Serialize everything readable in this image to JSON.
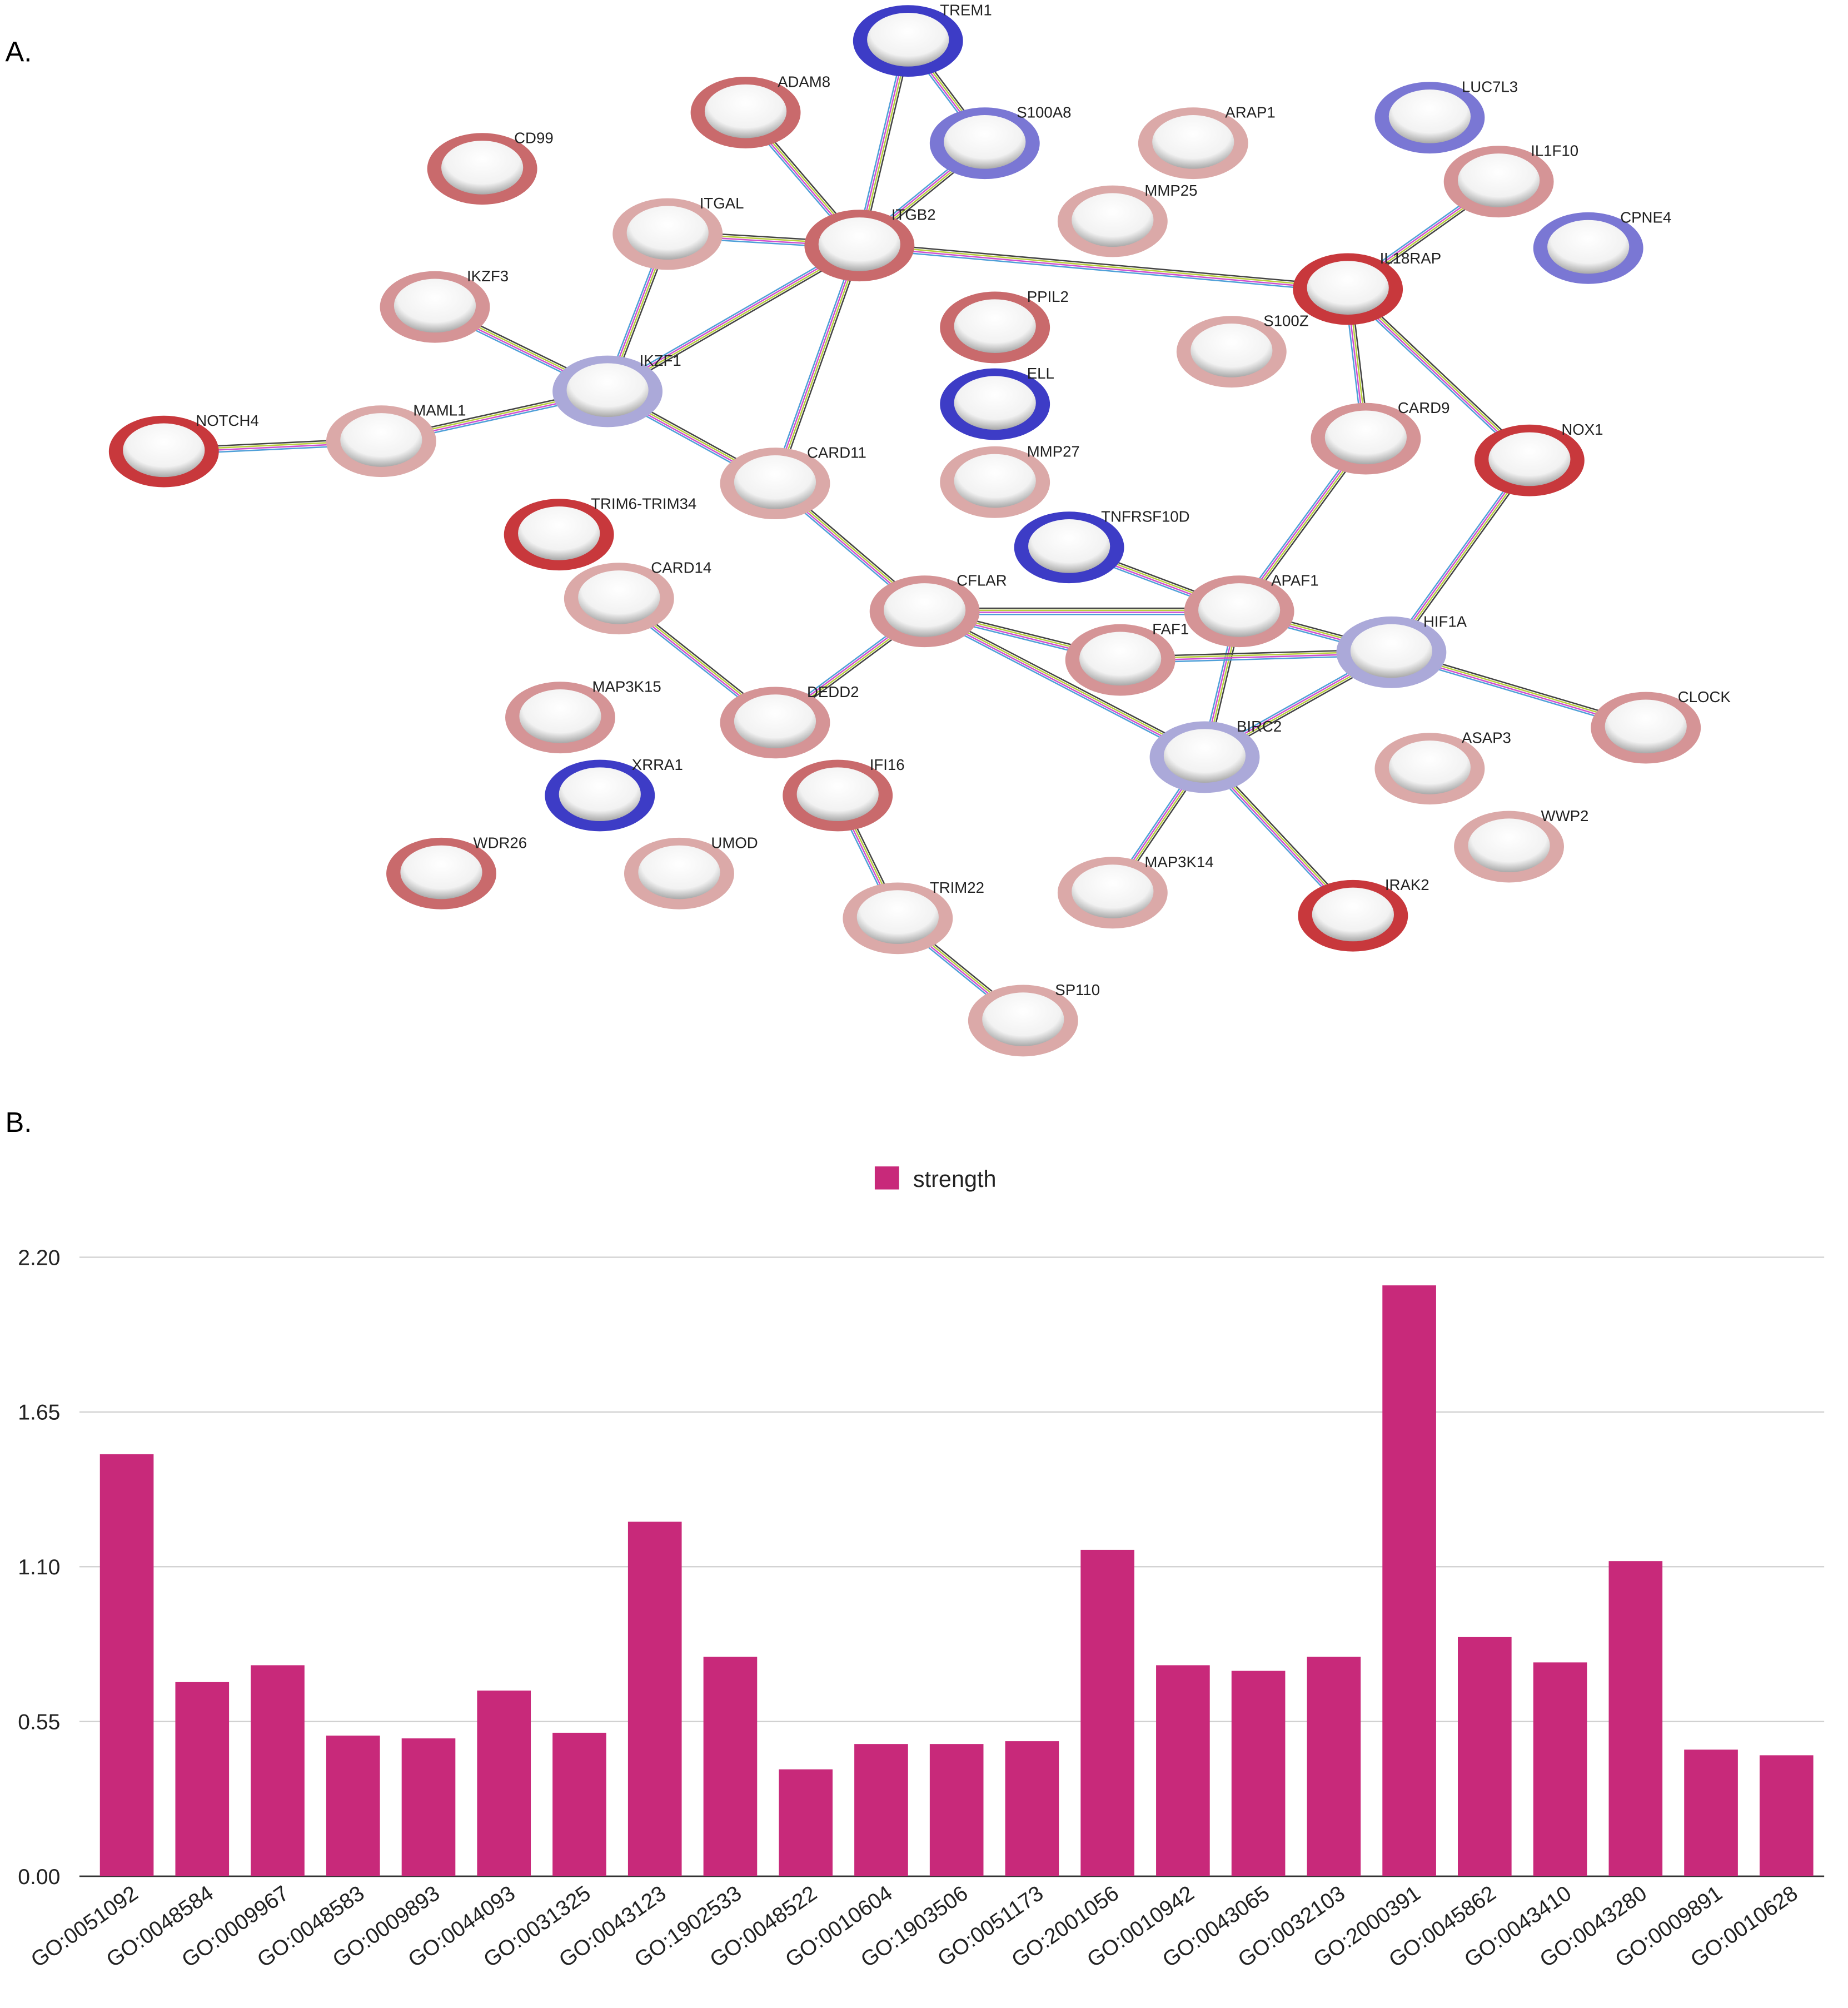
{
  "network": {
    "panel_label": "A.",
    "nodes": [
      "TREM1",
      "ADAM8",
      "S100A8",
      "CD99",
      "ARAP1",
      "LUC7L3",
      "IL1F10",
      "ITGAL",
      "ITGB2",
      "MMP25",
      "CPNE4",
      "IKZF3",
      "IL18RAP",
      "PPIL2",
      "S100Z",
      "IKZF1",
      "ELL",
      "NOTCH4",
      "MAML1",
      "CARD9",
      "NOX1",
      "CARD11",
      "MMP27",
      "TRIM6-TRIM34",
      "TNFRSF10D",
      "CARD14",
      "CFLAR",
      "APAF1",
      "FAF1",
      "HIF1A",
      "MAP3K15",
      "DEDD2",
      "CLOCK",
      "BIRC2",
      "ASAP3",
      "XRRA1",
      "IFI16",
      "WWP2",
      "WDR26",
      "UMOD",
      "MAP3K14",
      "TRIM22",
      "IRAK2",
      "SP110"
    ]
  },
  "chart_data": {
    "type": "bar",
    "panel_label": "B.",
    "categories": [
      "GO:0051092",
      "GO:0048584",
      "GO:0009967",
      "GO:0048583",
      "GO:0009893",
      "GO:0044093",
      "GO:0031325",
      "GO:0043123",
      "GO:1902533",
      "GO:0048522",
      "GO:0010604",
      "GO:1903506",
      "GO:0051173",
      "GO:2001056",
      "GO:0010942",
      "GO:0043065",
      "GO:0032103",
      "GO:2000391",
      "GO:0045862",
      "GO:0043410",
      "GO:0043280",
      "GO:0009891",
      "GO:0010628"
    ],
    "series": [
      {
        "name": "strength",
        "color": "#c8297a",
        "values": [
          1.5,
          0.69,
          0.75,
          0.5,
          0.49,
          0.66,
          0.51,
          1.26,
          0.78,
          0.38,
          0.47,
          0.47,
          0.48,
          1.16,
          0.75,
          0.73,
          0.78,
          2.1,
          0.85,
          0.76,
          1.12,
          0.45,
          0.43
        ]
      }
    ],
    "ylim": [
      0,
      2.2
    ],
    "yticks": [
      {
        "value": 0,
        "label": "0.00"
      },
      {
        "value": 0.55,
        "label": "0.55"
      },
      {
        "value": 1.1,
        "label": "1.10"
      },
      {
        "value": 1.65,
        "label": "1.65"
      },
      {
        "value": 2.2,
        "label": "2.20"
      }
    ],
    "grid": true,
    "legend": "top"
  }
}
